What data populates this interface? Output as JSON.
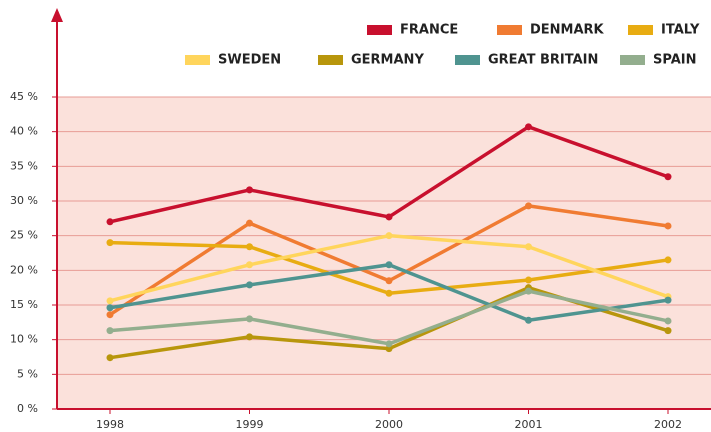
{
  "chart_data": {
    "type": "line",
    "categories": [
      "1998",
      "1999",
      "2000",
      "2001",
      "2002"
    ],
    "series": [
      {
        "name": "FRANCE",
        "color": "#c8102e",
        "values": [
          27.0,
          31.6,
          27.7,
          40.7,
          33.5
        ]
      },
      {
        "name": "DENMARK",
        "color": "#f07b32",
        "values": [
          13.6,
          26.8,
          18.5,
          29.3,
          26.4
        ]
      },
      {
        "name": "ITALY",
        "color": "#e8ac12",
        "values": [
          24.0,
          23.4,
          16.7,
          18.6,
          21.5
        ]
      },
      {
        "name": "SWEDEN",
        "color": "#ffd55c",
        "values": [
          15.6,
          20.8,
          25.0,
          23.4,
          16.2
        ]
      },
      {
        "name": "GERMANY",
        "color": "#b8960c",
        "values": [
          7.4,
          10.4,
          8.7,
          17.5,
          11.3
        ]
      },
      {
        "name": "GREAT BRITAIN",
        "color": "#4f9490",
        "values": [
          14.6,
          17.9,
          20.8,
          12.8,
          15.7
        ]
      },
      {
        "name": "SPAIN",
        "color": "#93ae8e",
        "values": [
          11.3,
          13.0,
          9.4,
          17.0,
          12.7
        ]
      }
    ],
    "ylim": [
      0,
      45
    ],
    "yticks": [
      {
        "value": 0,
        "label": "0 %"
      },
      {
        "value": 5,
        "label": "5 %"
      },
      {
        "value": 10,
        "label": "10 %"
      },
      {
        "value": 15,
        "label": "15 %"
      },
      {
        "value": 20,
        "label": "20 %"
      },
      {
        "value": 25,
        "label": "25 %"
      },
      {
        "value": 30,
        "label": "30 %"
      },
      {
        "value": 35,
        "label": "35 %"
      },
      {
        "value": 40,
        "label": "40 %"
      },
      {
        "value": 45,
        "label": "45 %"
      }
    ],
    "grid": true
  }
}
